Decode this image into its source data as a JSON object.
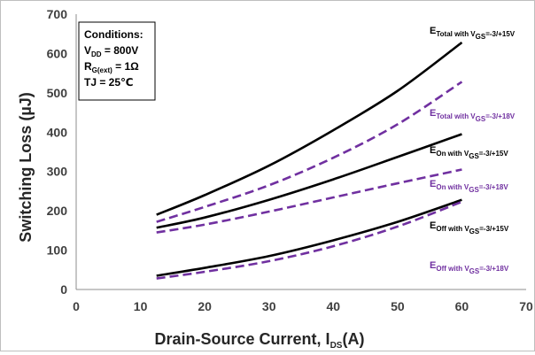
{
  "chart_data": {
    "type": "line",
    "xlabel": {
      "main": "Drain-Source Current, I",
      "sub": "DS",
      "tail": "(A)"
    },
    "ylabel": "Switching Loss (µJ)",
    "xlim": [
      0,
      70
    ],
    "ylim": [
      0,
      700
    ],
    "xticks": [
      "0",
      "10",
      "20",
      "30",
      "40",
      "50",
      "60",
      "70"
    ],
    "yticks": [
      "0",
      "100",
      "200",
      "300",
      "400",
      "500",
      "600",
      "700"
    ],
    "grid": false,
    "conditions": {
      "title": "Conditions:",
      "vdd": {
        "main": "V",
        "sub": "DD",
        "tail": " = 800V"
      },
      "rg": {
        "main": "R",
        "sub": "G(ext)",
        "tail": " = 1Ω"
      },
      "tj": "TJ = 25℃"
    },
    "series": [
      {
        "name": "ETotal with VGS=-3/+15V",
        "label": {
          "e": "E",
          "sub1": "Total with V",
          "sub2": "GS",
          "sub3": "=-3/+15V"
        },
        "color": "#000000",
        "dash": false,
        "x": [
          12.5,
          20,
          30,
          40,
          50,
          60
        ],
        "y": [
          190,
          240,
          315,
          405,
          505,
          628
        ]
      },
      {
        "name": "ETotal with VGS=-3/+18V",
        "label": {
          "e": "E",
          "sub1": "Total with V",
          "sub2": "GS",
          "sub3": "=-3/+18V"
        },
        "color": "#7030a0",
        "dash": true,
        "x": [
          12.5,
          20,
          30,
          40,
          50,
          60
        ],
        "y": [
          172,
          210,
          265,
          335,
          420,
          528
        ]
      },
      {
        "name": "EOn with VGS=-3/+15V",
        "label": {
          "e": "E",
          "sub1": "On with V",
          "sub2": "GS",
          "sub3": "=-3/+15V"
        },
        "color": "#000000",
        "dash": false,
        "x": [
          12.5,
          20,
          30,
          40,
          50,
          60
        ],
        "y": [
          157,
          183,
          228,
          280,
          337,
          395
        ]
      },
      {
        "name": "EOn with VGS=-3/+18V",
        "label": {
          "e": "E",
          "sub1": "On with V",
          "sub2": "GS",
          "sub3": "=-3/+18V"
        },
        "color": "#7030a0",
        "dash": true,
        "x": [
          12.5,
          20,
          30,
          40,
          50,
          60
        ],
        "y": [
          145,
          165,
          198,
          234,
          270,
          305
        ]
      },
      {
        "name": "EOff with VGS=-3/+15V",
        "label": {
          "e": "E",
          "sub1": "Off with V",
          "sub2": "GS",
          "sub3": "=-3/+15V"
        },
        "color": "#000000",
        "dash": false,
        "x": [
          12.5,
          20,
          30,
          40,
          50,
          60
        ],
        "y": [
          35,
          55,
          85,
          125,
          172,
          228
        ]
      },
      {
        "name": "EOff with VGS=-3/+18V",
        "label": {
          "e": "E",
          "sub1": "Off with V",
          "sub2": "GS",
          "sub3": "=-3/+18V"
        },
        "color": "#7030a0",
        "dash": true,
        "x": [
          12.5,
          20,
          30,
          40,
          50,
          60
        ],
        "y": [
          28,
          45,
          72,
          110,
          160,
          223
        ]
      }
    ]
  }
}
